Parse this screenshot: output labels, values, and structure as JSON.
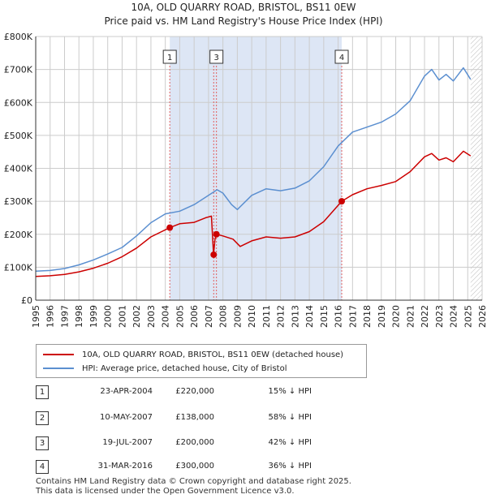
{
  "title": {
    "line1": "10A, OLD QUARRY ROAD, BRISTOL, BS11 0EW",
    "line2": "Price paid vs. HM Land Registry's House Price Index (HPI)"
  },
  "colors": {
    "property": "#cc0000",
    "hpi": "#5b8fd0",
    "band": "#dde6f5",
    "grid": "#cccccc",
    "marker_line": "#e06060"
  },
  "chart_data": {
    "type": "line",
    "title": "Price paid vs. HM Land Registry's House Price Index (HPI)",
    "xlabel": "",
    "ylabel": "",
    "xlim": [
      1995,
      2026
    ],
    "ylim": [
      0,
      800000
    ],
    "x_ticks": [
      "1995",
      "1996",
      "1997",
      "1998",
      "1999",
      "2000",
      "2001",
      "2002",
      "2003",
      "2004",
      "2005",
      "2006",
      "2007",
      "2008",
      "2009",
      "2010",
      "2011",
      "2012",
      "2013",
      "2014",
      "2015",
      "2016",
      "2017",
      "2018",
      "2019",
      "2020",
      "2021",
      "2022",
      "2023",
      "2024",
      "2025",
      "2026"
    ],
    "y_ticks": [
      {
        "value": 0,
        "label": "£0"
      },
      {
        "value": 100000,
        "label": "£100K"
      },
      {
        "value": 200000,
        "label": "£200K"
      },
      {
        "value": 300000,
        "label": "£300K"
      },
      {
        "value": 400000,
        "label": "£400K"
      },
      {
        "value": 500000,
        "label": "£500K"
      },
      {
        "value": 600000,
        "label": "£600K"
      },
      {
        "value": 700000,
        "label": "£700K"
      },
      {
        "value": 800000,
        "label": "£800K"
      }
    ],
    "series": [
      {
        "name": "10A, OLD QUARRY ROAD, BRISTOL, BS11 0EW (detached house)",
        "points": [
          [
            1995.0,
            72000
          ],
          [
            1996.0,
            74000
          ],
          [
            1997.0,
            78000
          ],
          [
            1998.0,
            86000
          ],
          [
            1999.0,
            97000
          ],
          [
            2000.0,
            112000
          ],
          [
            2001.0,
            132000
          ],
          [
            2002.0,
            158000
          ],
          [
            2003.0,
            192000
          ],
          [
            2004.31,
            220000
          ],
          [
            2005.0,
            232000
          ],
          [
            2006.0,
            236000
          ],
          [
            2006.8,
            250000
          ],
          [
            2007.2,
            255000
          ],
          [
            2007.35,
            138000
          ],
          [
            2007.45,
            185000
          ],
          [
            2007.55,
            200000
          ],
          [
            2008.0,
            195000
          ],
          [
            2008.7,
            185000
          ],
          [
            2009.2,
            163000
          ],
          [
            2010.0,
            180000
          ],
          [
            2011.0,
            192000
          ],
          [
            2012.0,
            188000
          ],
          [
            2013.0,
            192000
          ],
          [
            2014.0,
            208000
          ],
          [
            2015.0,
            238000
          ],
          [
            2016.25,
            300000
          ],
          [
            2017.0,
            320000
          ],
          [
            2018.0,
            338000
          ],
          [
            2019.0,
            348000
          ],
          [
            2020.0,
            360000
          ],
          [
            2021.0,
            390000
          ],
          [
            2022.0,
            435000
          ],
          [
            2022.5,
            445000
          ],
          [
            2023.0,
            425000
          ],
          [
            2023.5,
            432000
          ],
          [
            2024.0,
            420000
          ],
          [
            2024.7,
            452000
          ],
          [
            2025.2,
            438000
          ]
        ]
      },
      {
        "name": "HPI: Average price, detached house, City of Bristol",
        "points": [
          [
            1995.0,
            88000
          ],
          [
            1996.0,
            90000
          ],
          [
            1997.0,
            96000
          ],
          [
            1998.0,
            107000
          ],
          [
            1999.0,
            122000
          ],
          [
            2000.0,
            140000
          ],
          [
            2001.0,
            160000
          ],
          [
            2002.0,
            195000
          ],
          [
            2003.0,
            235000
          ],
          [
            2004.0,
            262000
          ],
          [
            2005.0,
            270000
          ],
          [
            2006.0,
            290000
          ],
          [
            2007.0,
            318000
          ],
          [
            2007.6,
            335000
          ],
          [
            2008.0,
            325000
          ],
          [
            2008.6,
            290000
          ],
          [
            2009.0,
            275000
          ],
          [
            2010.0,
            318000
          ],
          [
            2011.0,
            338000
          ],
          [
            2012.0,
            332000
          ],
          [
            2013.0,
            340000
          ],
          [
            2014.0,
            362000
          ],
          [
            2015.0,
            405000
          ],
          [
            2016.0,
            468000
          ],
          [
            2017.0,
            510000
          ],
          [
            2018.0,
            525000
          ],
          [
            2019.0,
            540000
          ],
          [
            2020.0,
            565000
          ],
          [
            2021.0,
            605000
          ],
          [
            2022.0,
            680000
          ],
          [
            2022.5,
            700000
          ],
          [
            2023.0,
            668000
          ],
          [
            2023.5,
            685000
          ],
          [
            2024.0,
            665000
          ],
          [
            2024.7,
            705000
          ],
          [
            2025.2,
            670000
          ]
        ]
      }
    ],
    "transactions": [
      {
        "id": "1",
        "x": 2004.31,
        "value": 220000
      },
      {
        "id": "2",
        "x": 2007.36,
        "value": 138000
      },
      {
        "id": "3",
        "x": 2007.55,
        "value": 200000
      },
      {
        "id": "4",
        "x": 2016.25,
        "value": 300000
      }
    ],
    "shaded_band": [
      2004.31,
      2016.25
    ],
    "hatched_from": 2025.2
  },
  "legend": {
    "property_label": "10A, OLD QUARRY ROAD, BRISTOL, BS11 0EW (detached house)",
    "hpi_label": "HPI: Average price, detached house, City of Bristol"
  },
  "table": [
    {
      "num": "1",
      "date": "23-APR-2004",
      "price": "£220,000",
      "hpi": "15% ↓ HPI"
    },
    {
      "num": "2",
      "date": "10-MAY-2007",
      "price": "£138,000",
      "hpi": "58% ↓ HPI"
    },
    {
      "num": "3",
      "date": "19-JUL-2007",
      "price": "£200,000",
      "hpi": "42% ↓ HPI"
    },
    {
      "num": "4",
      "date": "31-MAR-2016",
      "price": "£300,000",
      "hpi": "36% ↓ HPI"
    }
  ],
  "footer": {
    "line1": "Contains HM Land Registry data © Crown copyright and database right 2025.",
    "line2": "This data is licensed under the Open Government Licence v3.0."
  }
}
